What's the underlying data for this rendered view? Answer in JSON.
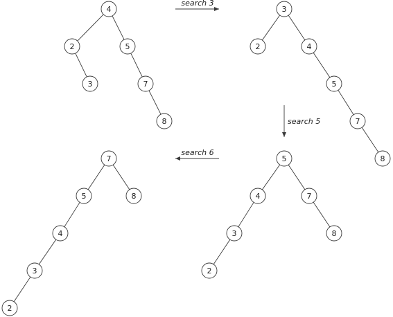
{
  "operations": {
    "op1": "search 3",
    "op2": "search 5",
    "op3": "search 6"
  },
  "trees": [
    {
      "id": "tree1",
      "nodes": [
        {
          "id": "t1n4",
          "label": "4"
        },
        {
          "id": "t1n2",
          "label": "2"
        },
        {
          "id": "t1n5",
          "label": "5"
        },
        {
          "id": "t1n3",
          "label": "3"
        },
        {
          "id": "t1n7",
          "label": "7"
        },
        {
          "id": "t1n8",
          "label": "8"
        }
      ],
      "edges": [
        [
          "t1n4",
          "t1n2"
        ],
        [
          "t1n4",
          "t1n5"
        ],
        [
          "t1n2",
          "t1n3"
        ],
        [
          "t1n5",
          "t1n7"
        ],
        [
          "t1n7",
          "t1n8"
        ]
      ]
    },
    {
      "id": "tree2",
      "nodes": [
        {
          "id": "t2n3",
          "label": "3"
        },
        {
          "id": "t2n2",
          "label": "2"
        },
        {
          "id": "t2n4",
          "label": "4"
        },
        {
          "id": "t2n5",
          "label": "5"
        },
        {
          "id": "t2n7",
          "label": "7"
        },
        {
          "id": "t2n8",
          "label": "8"
        }
      ],
      "edges": [
        [
          "t2n3",
          "t2n2"
        ],
        [
          "t2n3",
          "t2n4"
        ],
        [
          "t2n4",
          "t2n5"
        ],
        [
          "t2n5",
          "t2n7"
        ],
        [
          "t2n7",
          "t2n8"
        ]
      ]
    },
    {
      "id": "tree3",
      "nodes": [
        {
          "id": "t3n5",
          "label": "5"
        },
        {
          "id": "t3n4",
          "label": "4"
        },
        {
          "id": "t3n7",
          "label": "7"
        },
        {
          "id": "t3n3",
          "label": "3"
        },
        {
          "id": "t3n8",
          "label": "8"
        },
        {
          "id": "t3n2",
          "label": "2"
        }
      ],
      "edges": [
        [
          "t3n5",
          "t3n4"
        ],
        [
          "t3n5",
          "t3n7"
        ],
        [
          "t3n4",
          "t3n3"
        ],
        [
          "t3n7",
          "t3n8"
        ],
        [
          "t3n3",
          "t3n2"
        ]
      ]
    },
    {
      "id": "tree4",
      "nodes": [
        {
          "id": "t4n7",
          "label": "7"
        },
        {
          "id": "t4n5",
          "label": "5"
        },
        {
          "id": "t4n8",
          "label": "8"
        },
        {
          "id": "t4n4",
          "label": "4"
        },
        {
          "id": "t4n3",
          "label": "3"
        },
        {
          "id": "t4n2",
          "label": "2"
        }
      ],
      "edges": [
        [
          "t4n7",
          "t4n5"
        ],
        [
          "t4n7",
          "t4n8"
        ],
        [
          "t4n5",
          "t4n4"
        ],
        [
          "t4n4",
          "t4n3"
        ],
        [
          "t4n3",
          "t4n2"
        ]
      ]
    }
  ]
}
